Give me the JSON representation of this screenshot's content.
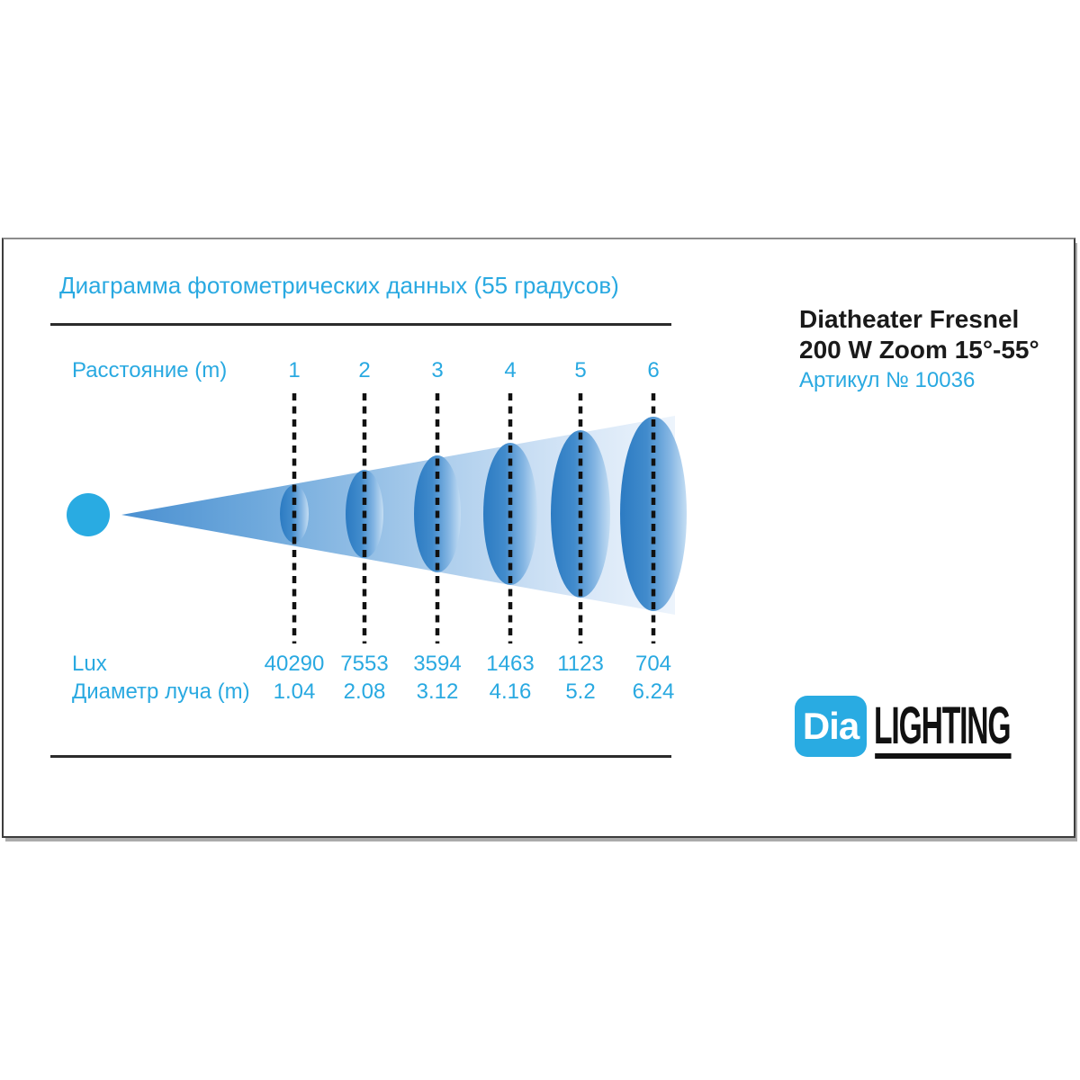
{
  "panel": {
    "title": "Диаграмма фотометрических данных (55 градусов)"
  },
  "product": {
    "name_line1": "Diatheater Fresnel",
    "name_line2": "200 W Zoom 15°-55°",
    "sku": "Артикул № 10036"
  },
  "logo": {
    "badge_text": "Dia",
    "word": "LIGHTING"
  },
  "colors": {
    "accent_cyan": "#29abe2",
    "beam_blue": "#4a90d1",
    "ellipse_blue": "#2c7bc2",
    "text_black": "#1a1a1a",
    "marker_black": "#111111"
  },
  "chart_data": {
    "type": "table",
    "title": "Диаграмма фотометрических данных (55 градусов)",
    "beam_angle_degrees": 55,
    "distance_label": "Расстояние (m)",
    "lux_label": "Lux",
    "diameter_label": "Диаметр луча (m)",
    "distances_m": [
      "1",
      "2",
      "3",
      "4",
      "5",
      "6"
    ],
    "lux_values": [
      "40290",
      "7553",
      "3594",
      "1463",
      "1123",
      "704"
    ],
    "beam_diameters_m": [
      "1.04",
      "2.08",
      "3.12",
      "4.16",
      "5.2",
      "6.24"
    ],
    "legend_position": "none",
    "grid": "off"
  }
}
